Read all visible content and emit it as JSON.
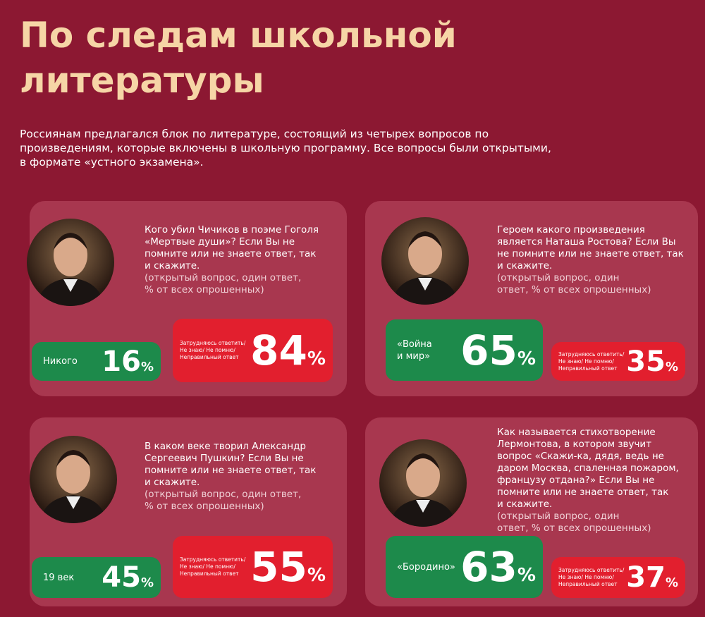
{
  "header": {
    "title_lines": [
      "По следам школьной",
      "литературы"
    ],
    "intro_lines": [
      "Россиянам предлагался блок по литературе, состоящий из четырех вопросов по",
      "произведениям, которые включены в школьную программу. Все вопросы были открытыми,",
      "в формате «устного экзамена»."
    ]
  },
  "unit": "%",
  "wrong_label_lines": [
    "Затрудняюсь ответить/",
    "Не знаю/ Не помню/",
    "Неправильный ответ"
  ],
  "cards": [
    {
      "question_lines": [
        "Кого убил Чичиков в поэме Гоголя",
        "«Мертвые души»? Если Вы не",
        "помните или не знаете ответ, так",
        "и скажите."
      ],
      "note_lines": [
        "(открытый вопрос, один ответ,",
        "% от всех опрошенных)"
      ],
      "correct": {
        "answer_lines": [
          "Никого"
        ],
        "value": "16"
      },
      "wrong": {
        "value": "84"
      }
    },
    {
      "question_lines": [
        "Героем какого произведения",
        "является Наташа Ростова? Если Вы",
        "не помните или не знаете ответ, так",
        "и скажите."
      ],
      "note_lines": [
        "(открытый вопрос, один",
        "ответ, % от всех опрошенных)"
      ],
      "correct": {
        "answer_lines": [
          "«Война",
          "и мир»"
        ],
        "value": "65"
      },
      "wrong": {
        "value": "35"
      }
    },
    {
      "question_lines": [
        "В каком веке творил Александр",
        "Сергеевич Пушкин? Если Вы не",
        "помните или не знаете ответ, так",
        "и скажите."
      ],
      "note_lines": [
        "(открытый вопрос, один ответ,",
        "% от всех опрошенных)"
      ],
      "correct": {
        "answer_lines": [
          "19 век"
        ],
        "value": "45"
      },
      "wrong": {
        "value": "55"
      }
    },
    {
      "question_lines": [
        "Как называется стихотворение",
        "Лермонтова, в котором звучит",
        "вопрос «Скажи-ка, дядя, ведь не",
        "даром Москва, спаленная пожаром,",
        "французу отдана?» Если Вы не",
        "помните или не знаете ответ, так",
        "и скажите."
      ],
      "note_lines": [
        "(открытый вопрос, один",
        "ответ, % от всех опрошенных)"
      ],
      "correct": {
        "answer_lines": [
          "«Бородино»"
        ],
        "value": "63"
      },
      "wrong": {
        "value": "37"
      }
    }
  ]
}
